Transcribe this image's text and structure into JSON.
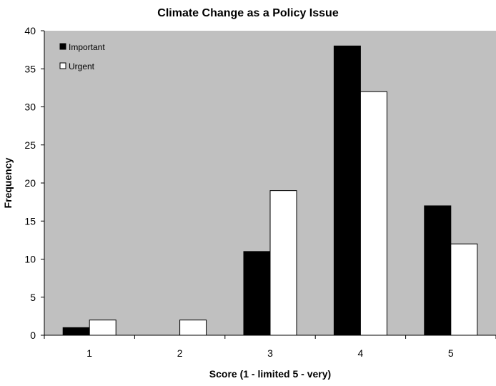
{
  "chart_data": {
    "type": "bar",
    "title": "Climate Change as a Policy Issue",
    "xlabel": "Score (1 - limited 5 - very)",
    "ylabel": "Frequency",
    "categories": [
      "1",
      "2",
      "3",
      "4",
      "5"
    ],
    "series": [
      {
        "name": "Important",
        "values": [
          1,
          0,
          11,
          38,
          17
        ],
        "color": "#000000"
      },
      {
        "name": "Urgent",
        "values": [
          2,
          2,
          19,
          32,
          12
        ],
        "color": "#ffffff"
      }
    ],
    "ylim": [
      0,
      40
    ],
    "yticks": [
      0,
      5,
      10,
      15,
      20,
      25,
      30,
      35,
      40
    ],
    "grid": false,
    "legend_position": "top-left",
    "plot_background": "#c0c0c0"
  }
}
